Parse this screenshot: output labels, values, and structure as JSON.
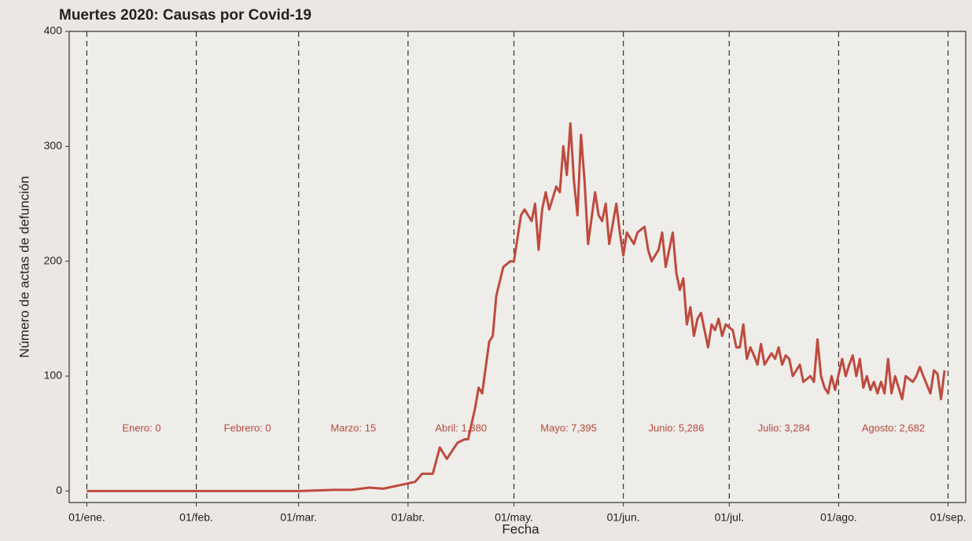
{
  "chart_data": {
    "type": "line",
    "title": "Muertes 2020: Causas por Covid-19",
    "x_label": "Fecha",
    "y_label": "Número de actas de defunción",
    "xlim": [
      -5,
      249
    ],
    "ylim": [
      -10,
      400
    ],
    "xticks": [
      {
        "value": 0,
        "label": "01/ene."
      },
      {
        "value": 31,
        "label": "01/feb."
      },
      {
        "value": 60,
        "label": "01/mar."
      },
      {
        "value": 91,
        "label": "01/abr."
      },
      {
        "value": 121,
        "label": "01/may."
      },
      {
        "value": 152,
        "label": "01/jun."
      },
      {
        "value": 182,
        "label": "01/jul."
      },
      {
        "value": 213,
        "label": "01/ago."
      },
      {
        "value": 244,
        "label": "01/sep."
      }
    ],
    "yticks": [
      0,
      100,
      200,
      300,
      400
    ],
    "annotations": [
      "Enero: 0",
      "Febrero: 0",
      "Marzo: 15",
      "Abril: 1,880",
      "Mayo: 7,395",
      "Junio: 5,286",
      "Julio: 3,284",
      "Agosto: 2,682"
    ],
    "vertical_grid": true,
    "series": [
      {
        "color": "#bf4a3e",
        "x": [
          0,
          15,
          30,
          45,
          60,
          70,
          75,
          80,
          84,
          87,
          90,
          93,
          95,
          98,
          100,
          102,
          105,
          107,
          108,
          110,
          111,
          112,
          114,
          115,
          116,
          118,
          120,
          121,
          123,
          124,
          126,
          127,
          128,
          129,
          130,
          131,
          133,
          134,
          135,
          136,
          137,
          138,
          139,
          140,
          141,
          142,
          144,
          145,
          146,
          147,
          148,
          150,
          151,
          152,
          153,
          155,
          156,
          158,
          159,
          160,
          162,
          163,
          164,
          166,
          167,
          168,
          169,
          170,
          171,
          172,
          173,
          174,
          176,
          177,
          178,
          179,
          180,
          181,
          183,
          184,
          185,
          186,
          187,
          188,
          189,
          190,
          191,
          192,
          194,
          195,
          196,
          197,
          198,
          199,
          200,
          202,
          203,
          205,
          206,
          207,
          208,
          209,
          210,
          211,
          212,
          214,
          215,
          216,
          217,
          218,
          219,
          220,
          221,
          222,
          223,
          224,
          225,
          226,
          227,
          228,
          229,
          231,
          232,
          234,
          235,
          236,
          237,
          239,
          240,
          241,
          242,
          243
        ],
        "values": [
          0,
          0,
          0,
          0,
          0,
          1,
          1,
          3,
          2,
          4,
          6,
          8,
          15,
          15,
          38,
          28,
          42,
          45,
          45,
          72,
          90,
          85,
          130,
          135,
          170,
          195,
          200,
          200,
          240,
          245,
          235,
          250,
          210,
          245,
          260,
          245,
          265,
          260,
          300,
          275,
          320,
          270,
          240,
          310,
          270,
          215,
          260,
          240,
          235,
          250,
          215,
          250,
          225,
          205,
          225,
          215,
          225,
          230,
          210,
          200,
          210,
          225,
          195,
          225,
          190,
          175,
          185,
          145,
          160,
          135,
          150,
          155,
          125,
          145,
          140,
          150,
          135,
          145,
          140,
          125,
          125,
          145,
          115,
          125,
          118,
          110,
          128,
          110,
          120,
          115,
          125,
          110,
          118,
          115,
          100,
          110,
          95,
          100,
          95,
          132,
          100,
          90,
          85,
          100,
          88,
          115,
          100,
          110,
          118,
          100,
          115,
          90,
          100,
          88,
          95,
          85,
          95,
          85,
          115,
          85,
          100,
          80,
          100,
          95,
          100,
          108,
          100,
          85,
          105,
          102,
          80,
          105
        ]
      }
    ]
  }
}
